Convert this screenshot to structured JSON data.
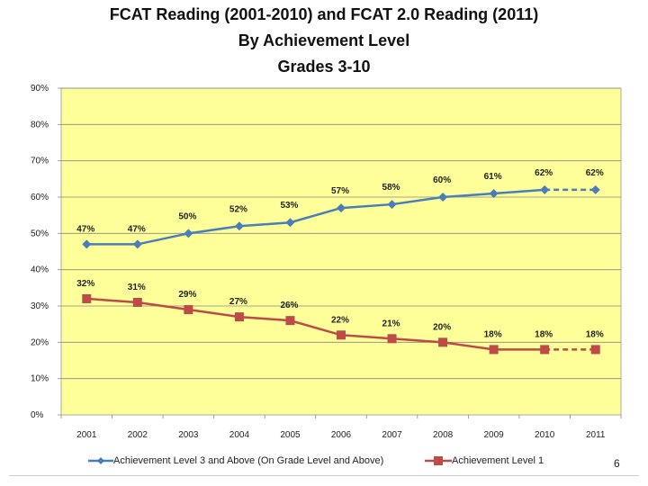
{
  "chart_data": {
    "type": "line",
    "title_lines": [
      "FCAT Reading (2001-2010) and FCAT 2.0 Reading (2011)",
      "By Achievement Level",
      "Grades 3-10"
    ],
    "categories": [
      "2001",
      "2002",
      "2003",
      "2004",
      "2005",
      "2006",
      "2007",
      "2008",
      "2009",
      "2010",
      "2011"
    ],
    "y_ticks": [
      "0%",
      "10%",
      "20%",
      "30%",
      "40%",
      "50%",
      "60%",
      "70%",
      "80%",
      "90%"
    ],
    "ylim": [
      0,
      90
    ],
    "grid": true,
    "legend_position": "bottom",
    "series": [
      {
        "name": "Achievement Level 3 and Above (On Grade Level and Above)",
        "color": "#4a7ebb",
        "marker": "diamond",
        "values": [
          47,
          47,
          50,
          52,
          53,
          57,
          58,
          60,
          61,
          62,
          62
        ],
        "labels": [
          "47%",
          "47%",
          "50%",
          "52%",
          "53%",
          "57%",
          "58%",
          "60%",
          "61%",
          "62%",
          "62%"
        ],
        "dashed_from_index": 9
      },
      {
        "name": "Achievement Level 1",
        "color": "#be4b48",
        "marker": "square",
        "values": [
          32,
          31,
          29,
          27,
          26,
          22,
          21,
          20,
          18,
          18,
          18
        ],
        "labels": [
          "32%",
          "31%",
          "29%",
          "27%",
          "26%",
          "22%",
          "21%",
          "20%",
          "18%",
          "18%",
          "18%"
        ],
        "dashed_from_index": 9
      }
    ],
    "plot_background": "#ffff99"
  },
  "page_number": "6"
}
